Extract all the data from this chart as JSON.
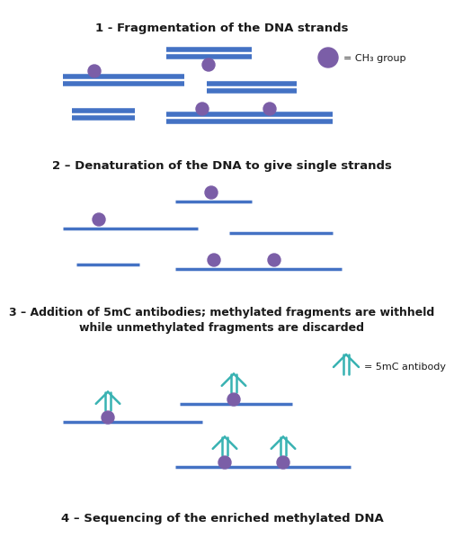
{
  "title1": "1 - Fragmentation of the DNA strands",
  "title2": "2 – Denaturation of the DNA to give single strands",
  "title3_line1": "3 – Addition of 5mC antibodies; methylated fragments are withheld",
  "title3_line2": "while unmethylated fragments are discarded",
  "title4": "4 – Sequencing of the enriched methylated DNA",
  "legend_ch3": "= CH₃ group",
  "legend_5mc": "= 5mC antibody",
  "dna_color": "#4472C4",
  "methyl_color": "#7B5EA7",
  "antibody_color": "#38B2B2",
  "text_color": "#1a1a1a",
  "bg_color": "#FFFFFF",
  "dna_lw": 4.0,
  "single_lw": 2.5,
  "ab_lw": 1.8
}
